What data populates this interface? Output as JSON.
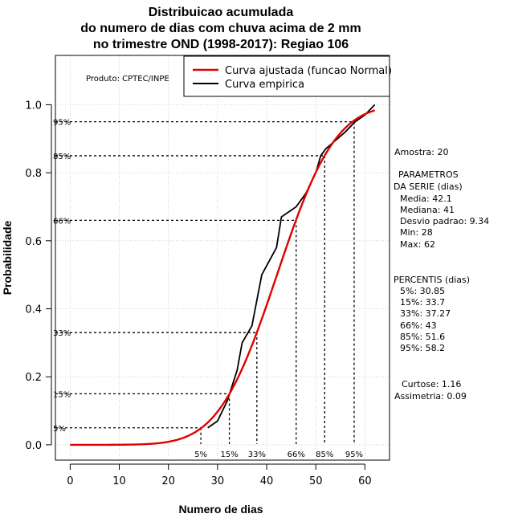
{
  "chart_data": {
    "type": "line",
    "title_lines": [
      "Distribuicao acumulada",
      "do numero de dias com chuva acima de 2 mm",
      "no trimestre OND (1998-2017): Regiao 106"
    ],
    "xlabel": "Numero de dias",
    "ylabel": "Probabilidade",
    "xlim": [
      -3,
      65
    ],
    "ylim": [
      -0.045,
      1.145
    ],
    "xticks": [
      0,
      10,
      20,
      30,
      40,
      50,
      60
    ],
    "yticks": [
      "0.0",
      "0.2",
      "0.4",
      "0.6",
      "0.8",
      "1.0"
    ],
    "ytick_values": [
      0,
      0.2,
      0.4,
      0.6,
      0.8,
      1.0
    ],
    "grid": true,
    "product_label": "Produto: CPTEC/INPE",
    "legend": [
      {
        "name": "Curva ajustada (funcao Normal)",
        "color": "#e00000"
      },
      {
        "name": "Curva empirica",
        "color": "#000000"
      }
    ],
    "normal_fit": {
      "name": "Curva ajustada (funcao Normal)",
      "mean": 42.1,
      "sd": 9.34,
      "x_range": [
        0,
        62
      ],
      "color": "#e00000"
    },
    "empirical": {
      "name": "Curva empirica",
      "color": "#000000",
      "x": [
        28,
        30,
        32,
        34,
        35,
        37,
        39,
        42,
        43,
        46,
        48,
        50,
        51,
        52,
        56,
        58,
        60,
        62
      ],
      "y": [
        0.05,
        0.07,
        0.13,
        0.22,
        0.3,
        0.35,
        0.5,
        0.58,
        0.67,
        0.7,
        0.74,
        0.8,
        0.85,
        0.87,
        0.92,
        0.95,
        0.97,
        1.0
      ]
    },
    "percentile_marks": [
      {
        "label": "5%",
        "p": 0.05,
        "x": 26.6
      },
      {
        "label": "15%",
        "p": 0.15,
        "x": 32.4
      },
      {
        "label": "33%",
        "p": 0.33,
        "x": 38.0
      },
      {
        "label": "66%",
        "p": 0.66,
        "x": 46.0
      },
      {
        "label": "85%",
        "p": 0.85,
        "x": 51.8
      },
      {
        "label": "95%",
        "p": 0.95,
        "x": 57.8
      }
    ]
  },
  "side_panel": {
    "sample": "Amostra: 20",
    "params_header_1": "PARAMETROS",
    "params_header_2": "DA SERIE (dias)",
    "mean": "Media: 42.1",
    "median": "Mediana: 41",
    "sd": "Desvio padrao: 9.34",
    "min": "Min: 28",
    "max": "Max: 62",
    "percentis_header": "PERCENTIS (dias)",
    "p5": "5%: 30.85",
    "p15": "15%: 33.7",
    "p33": "33%: 37.27",
    "p66": "66%: 43",
    "p85": "85%: 51.6",
    "p95": "95%: 58.2",
    "kurtosis": "Curtose: 1.16",
    "skewness": "Assimetria: 0.09"
  }
}
